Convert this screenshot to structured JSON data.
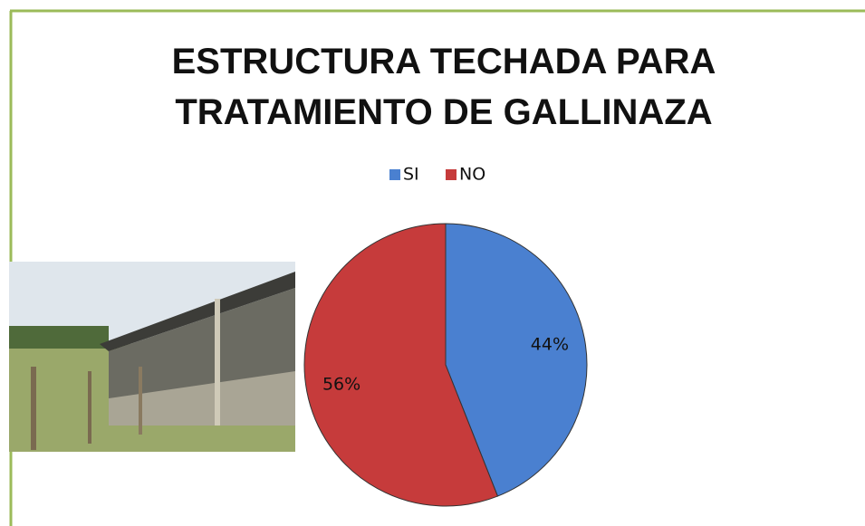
{
  "chart_data": {
    "type": "pie",
    "title": "ESTRUCTURA TECHADA PARA TRATAMIENTO DE GALLINAZA",
    "categories": [
      "SI",
      "NO"
    ],
    "values": [
      44,
      56
    ],
    "value_labels": [
      "44%",
      "56%"
    ],
    "colors": [
      "#4a80d0",
      "#c63b3b"
    ],
    "legend": "top"
  }
}
